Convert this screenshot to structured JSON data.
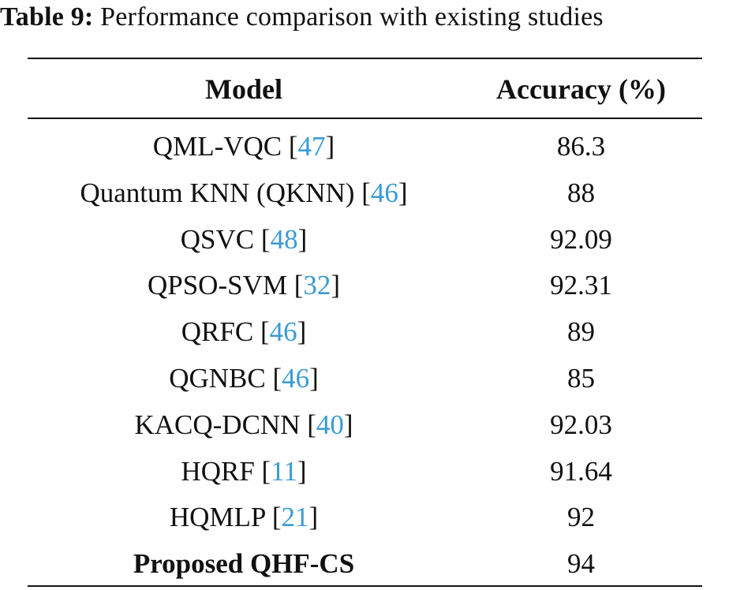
{
  "caption": {
    "label": "Table 9:",
    "text": "Performance comparison with existing studies"
  },
  "table": {
    "headers": {
      "model": "Model",
      "accuracy": "Accuracy (%)"
    },
    "rows": [
      {
        "model": "QML-VQC",
        "ref": "47",
        "accuracy": "86.3",
        "bold": false
      },
      {
        "model": "Quantum KNN (QKNN)",
        "ref": "46",
        "accuracy": "88",
        "bold": false
      },
      {
        "model": "QSVC",
        "ref": "48",
        "accuracy": "92.09",
        "bold": false
      },
      {
        "model": "QPSO-SVM",
        "ref": "32",
        "accuracy": "92.31",
        "bold": false
      },
      {
        "model": "QRFC",
        "ref": "46",
        "accuracy": "89",
        "bold": false
      },
      {
        "model": "QGNBC",
        "ref": "46",
        "accuracy": "85",
        "bold": false
      },
      {
        "model": "KACQ-DCNN",
        "ref": "40",
        "accuracy": "92.03",
        "bold": false
      },
      {
        "model": "HQRF",
        "ref": "11",
        "accuracy": "91.64",
        "bold": false
      },
      {
        "model": "HQMLP",
        "ref": "21",
        "accuracy": "92",
        "bold": false
      },
      {
        "model": "Proposed QHF-CS",
        "ref": "",
        "accuracy": "94",
        "bold": true
      }
    ]
  },
  "colors": {
    "text": "#111111",
    "citation": "#3a9bd4"
  }
}
